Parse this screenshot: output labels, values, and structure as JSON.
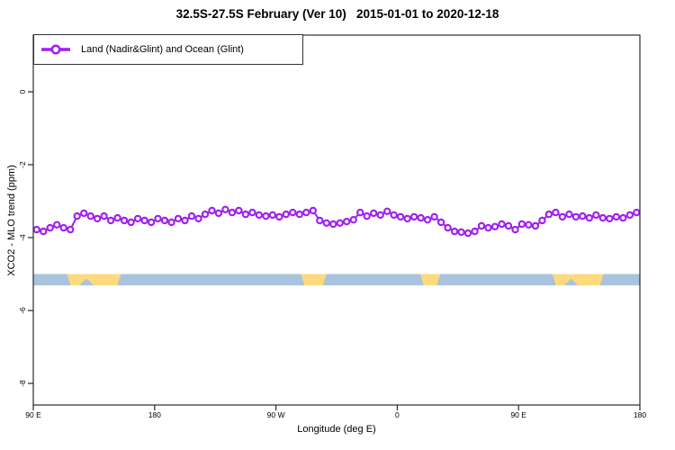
{
  "title": "32.5S-27.5S February (Ver 10)   2015-01-01 to 2020-12-18",
  "legend": {
    "label": "Land (Nadir&Glint) and Ocean (Glint)",
    "marker": "open-circle-on-line",
    "color": "#A020F0"
  },
  "chart_data": {
    "type": "line",
    "title": "32.5S-27.5S February (Ver 10)   2015-01-01 to 2020-12-18",
    "xlabel": "Longitude (deg E)",
    "ylabel": "XCO2 - MLO trend (ppm)",
    "xlim": [
      90,
      540
    ],
    "ylim": [
      -8.6,
      1.5
    ],
    "grid": false,
    "legend_position": "top-left",
    "x_ticks": [
      {
        "value": 90,
        "label": "90 E"
      },
      {
        "value": 180,
        "label": "180"
      },
      {
        "value": 270,
        "label": "90 W"
      },
      {
        "value": 360,
        "label": "0"
      },
      {
        "value": 450,
        "label": "90 E"
      },
      {
        "value": 540,
        "label": "180"
      }
    ],
    "y_ticks": [
      {
        "value": 0,
        "label": "0"
      },
      {
        "value": -2,
        "label": "-2"
      },
      {
        "value": -4,
        "label": "-4"
      },
      {
        "value": -6,
        "label": "-6"
      },
      {
        "value": -8,
        "label": "-8"
      }
    ],
    "series": [
      {
        "name": "Land (Nadir&Glint) and Ocean (Glint)",
        "color": "#A020F0",
        "marker": "open-circle",
        "x": [
          92.5,
          97.5,
          102.5,
          107.5,
          112.5,
          117.5,
          122.5,
          127.5,
          132.5,
          137.5,
          142.5,
          147.5,
          152.5,
          157.5,
          162.5,
          167.5,
          172.5,
          177.5,
          182.5,
          187.5,
          192.5,
          197.5,
          202.5,
          207.5,
          212.5,
          217.5,
          222.5,
          227.5,
          232.5,
          237.5,
          242.5,
          247.5,
          252.5,
          257.5,
          262.5,
          267.5,
          272.5,
          277.5,
          282.5,
          287.5,
          292.5,
          297.5,
          302.5,
          307.5,
          312.5,
          317.5,
          322.5,
          327.5,
          332.5,
          337.5,
          342.5,
          347.5,
          352.5,
          357.5,
          362.5,
          367.5,
          372.5,
          377.5,
          382.5,
          387.5,
          392.5,
          397.5,
          402.5,
          407.5,
          412.5,
          417.5,
          422.5,
          427.5,
          432.5,
          437.5,
          442.5,
          447.5,
          452.5,
          457.5,
          462.5,
          467.5,
          472.5,
          477.5,
          482.5,
          487.5,
          492.5,
          497.5,
          502.5,
          507.5,
          512.5,
          517.5,
          522.5,
          527.5,
          532.5,
          537.5
        ],
        "y": [
          -3.78,
          -3.83,
          -3.73,
          -3.65,
          -3.73,
          -3.78,
          -3.41,
          -3.33,
          -3.41,
          -3.48,
          -3.41,
          -3.53,
          -3.46,
          -3.53,
          -3.58,
          -3.48,
          -3.53,
          -3.58,
          -3.48,
          -3.53,
          -3.58,
          -3.48,
          -3.53,
          -3.41,
          -3.48,
          -3.36,
          -3.26,
          -3.33,
          -3.23,
          -3.31,
          -3.26,
          -3.36,
          -3.31,
          -3.38,
          -3.41,
          -3.38,
          -3.43,
          -3.36,
          -3.31,
          -3.36,
          -3.31,
          -3.26,
          -3.53,
          -3.6,
          -3.63,
          -3.6,
          -3.56,
          -3.51,
          -3.31,
          -3.41,
          -3.33,
          -3.38,
          -3.28,
          -3.38,
          -3.43,
          -3.48,
          -3.43,
          -3.46,
          -3.51,
          -3.43,
          -3.58,
          -3.73,
          -3.83,
          -3.85,
          -3.88,
          -3.83,
          -3.68,
          -3.73,
          -3.7,
          -3.63,
          -3.68,
          -3.78,
          -3.63,
          -3.65,
          -3.68,
          -3.53,
          -3.36,
          -3.31,
          -3.43,
          -3.36,
          -3.43,
          -3.41,
          -3.46,
          -3.38,
          -3.46,
          -3.48,
          -3.43,
          -3.46,
          -3.38,
          -3.31
        ]
      }
    ],
    "map_strip": {
      "description": "land-ocean indicator band along latitude strip",
      "ocean_color": "#A9C3DF",
      "land_color": "#FED97E",
      "y_top": -5.0,
      "y_bottom": -5.31,
      "ocean_span": [
        90,
        540
      ],
      "land_segments": [
        {
          "name": "australia",
          "from": 115,
          "to": 155,
          "notch_from": 124,
          "notch_to": 135
        },
        {
          "name": "south-america",
          "from": 288.5,
          "to": 307.5
        },
        {
          "name": "africa",
          "from": 377,
          "to": 392
        },
        {
          "name": "australia-repeat",
          "from": 475,
          "to": 513,
          "notch_from": 484,
          "notch_to": 494
        }
      ]
    }
  }
}
